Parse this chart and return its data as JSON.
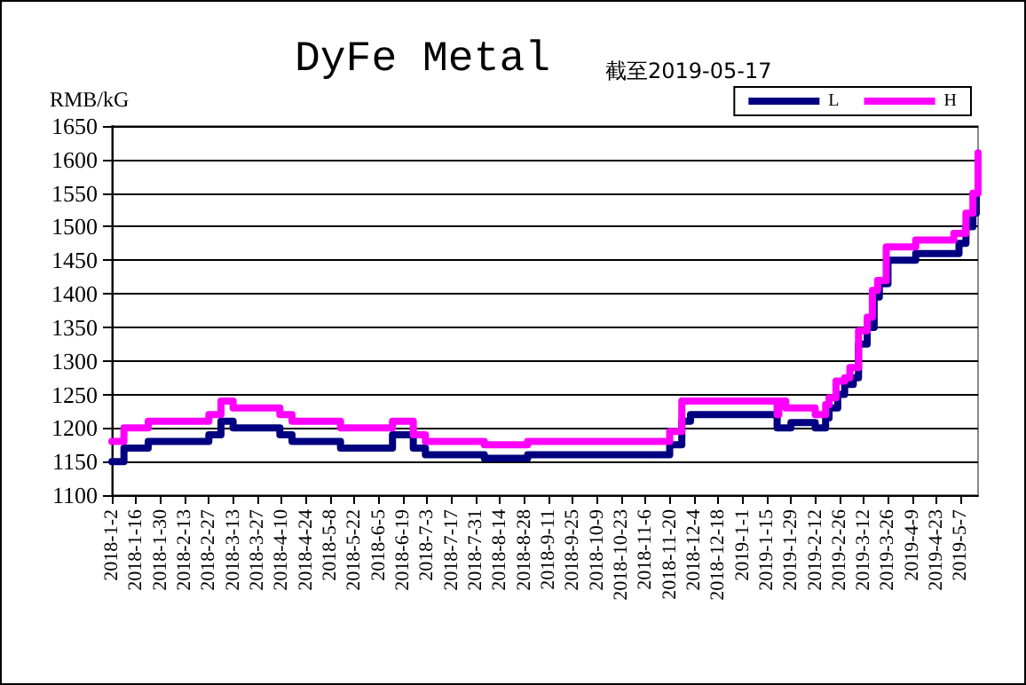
{
  "chart_data": {
    "type": "step",
    "title": "DyFe Metal",
    "subtitle": "截至2019-05-17",
    "ylabel": "RMB/kG",
    "xlim": [
      "2018-01-02",
      "2019-05-17"
    ],
    "xticks": [
      {
        "value": "2018-01-02",
        "label": "2018-1-2"
      },
      {
        "value": "2018-01-16",
        "label": "2018-1-16"
      },
      {
        "value": "2018-01-30",
        "label": "2018-1-30"
      },
      {
        "value": "2018-02-13",
        "label": "2018-2-13"
      },
      {
        "value": "2018-02-27",
        "label": "2018-2-27"
      },
      {
        "value": "2018-03-13",
        "label": "2018-3-13"
      },
      {
        "value": "2018-03-27",
        "label": "2018-3-27"
      },
      {
        "value": "2018-04-10",
        "label": "2018-4-10"
      },
      {
        "value": "2018-04-24",
        "label": "2018-4-24"
      },
      {
        "value": "2018-05-08",
        "label": "2018-5-8"
      },
      {
        "value": "2018-05-22",
        "label": "2018-5-22"
      },
      {
        "value": "2018-06-05",
        "label": "2018-6-5"
      },
      {
        "value": "2018-06-19",
        "label": "2018-6-19"
      },
      {
        "value": "2018-07-03",
        "label": "2018-7-3"
      },
      {
        "value": "2018-07-17",
        "label": "2018-7-17"
      },
      {
        "value": "2018-07-31",
        "label": "2018-7-31"
      },
      {
        "value": "2018-08-14",
        "label": "2018-8-14"
      },
      {
        "value": "2018-08-28",
        "label": "2018-8-28"
      },
      {
        "value": "2018-09-11",
        "label": "2018-9-11"
      },
      {
        "value": "2018-09-25",
        "label": "2018-9-25"
      },
      {
        "value": "2018-10-09",
        "label": "2018-10-9"
      },
      {
        "value": "2018-10-23",
        "label": "2018-10-23"
      },
      {
        "value": "2018-11-06",
        "label": "2018-11-6"
      },
      {
        "value": "2018-11-20",
        "label": "2018-11-20"
      },
      {
        "value": "2018-12-04",
        "label": "2018-12-4"
      },
      {
        "value": "2018-12-18",
        "label": "2018-12-18"
      },
      {
        "value": "2019-01-01",
        "label": "2019-1-1"
      },
      {
        "value": "2019-01-15",
        "label": "2019-1-15"
      },
      {
        "value": "2019-01-29",
        "label": "2019-1-29"
      },
      {
        "value": "2019-02-12",
        "label": "2019-2-12"
      },
      {
        "value": "2019-02-26",
        "label": "2019-2-26"
      },
      {
        "value": "2019-03-12",
        "label": "2019-3-12"
      },
      {
        "value": "2019-03-26",
        "label": "2019-3-26"
      },
      {
        "value": "2019-04-09",
        "label": "2019-4-9"
      },
      {
        "value": "2019-04-23",
        "label": "2019-4-23"
      },
      {
        "value": "2019-05-07",
        "label": "2019-5-7"
      }
    ],
    "ylim": [
      1100,
      1650
    ],
    "yticks": [
      1100,
      1150,
      1200,
      1250,
      1300,
      1350,
      1400,
      1450,
      1500,
      1550,
      1600,
      1650
    ],
    "grid": "y",
    "legend": "top right",
    "marker": "none",
    "line_style": "solid",
    "series": [
      {
        "name": "L",
        "color": "#000080",
        "x": [
          "2018-01-02",
          "2018-01-09",
          "2018-01-23",
          "2018-02-27",
          "2018-03-06",
          "2018-03-13",
          "2018-04-09",
          "2018-04-16",
          "2018-05-14",
          "2018-06-13",
          "2018-06-25",
          "2018-07-02",
          "2018-08-05",
          "2018-08-30",
          "2018-11-20",
          "2018-11-27",
          "2018-12-02",
          "2019-01-21",
          "2019-01-29",
          "2019-02-12",
          "2019-02-18",
          "2019-02-20",
          "2019-02-25",
          "2019-03-01",
          "2019-03-06",
          "2019-03-09",
          "2019-03-14",
          "2019-03-18",
          "2019-03-21",
          "2019-03-26",
          "2019-04-11",
          "2019-05-06",
          "2019-05-10",
          "2019-05-14",
          "2019-05-16"
        ],
        "values": [
          1150,
          1170,
          1180,
          1190,
          1210,
          1200,
          1190,
          1180,
          1170,
          1190,
          1170,
          1160,
          1155,
          1160,
          1175,
          1210,
          1220,
          1200,
          1208,
          1200,
          1215,
          1230,
          1250,
          1265,
          1275,
          1325,
          1350,
          1395,
          1415,
          1450,
          1460,
          1475,
          1500,
          1520,
          1550
        ]
      },
      {
        "name": "H",
        "color": "#ff00ff",
        "x": [
          "2018-01-02",
          "2018-01-09",
          "2018-01-23",
          "2018-02-27",
          "2018-03-06",
          "2018-03-13",
          "2018-04-09",
          "2018-04-16",
          "2018-05-14",
          "2018-06-13",
          "2018-06-25",
          "2018-07-02",
          "2018-08-05",
          "2018-08-30",
          "2018-11-20",
          "2018-11-27",
          "2019-01-21",
          "2019-01-22",
          "2019-01-26",
          "2019-02-12",
          "2019-02-18",
          "2019-02-20",
          "2019-02-24",
          "2019-03-01",
          "2019-03-04",
          "2019-03-09",
          "2019-03-14",
          "2019-03-17",
          "2019-03-20",
          "2019-03-25",
          "2019-04-11",
          "2019-05-03",
          "2019-05-10",
          "2019-05-14",
          "2019-05-17"
        ],
        "values": [
          1180,
          1200,
          1210,
          1220,
          1240,
          1230,
          1220,
          1210,
          1200,
          1210,
          1190,
          1180,
          1175,
          1180,
          1195,
          1240,
          1220,
          1240,
          1230,
          1220,
          1235,
          1245,
          1270,
          1275,
          1290,
          1345,
          1365,
          1405,
          1420,
          1470,
          1480,
          1490,
          1520,
          1550,
          1610
        ]
      }
    ]
  }
}
